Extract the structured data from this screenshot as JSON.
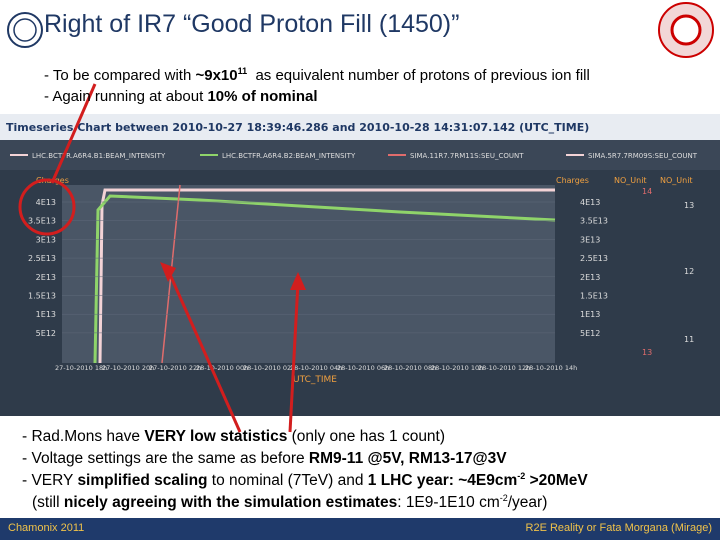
{
  "title": "Right of IR7 “Good Proton Fill (1450)”",
  "top_bullets": [
    [
      {
        "text": "- To be compared with "
      },
      {
        "text": "~9x10",
        "bold": true
      },
      {
        "text": "11",
        "bold": true,
        "sup": true
      },
      {
        "text": "  as equivalent number of protons of previous ion fill"
      }
    ],
    [
      {
        "text": "- Again running at about "
      },
      {
        "text": "10% of nominal",
        "bold": true
      }
    ]
  ],
  "chart": {
    "header": "Timeseries Chart between 2010-10-27 18:39:46.286 and 2010-10-28 14:31:07.142 (UTC_TIME)",
    "legend": [
      "LHC.BCTFR.A6R4.B1:BEAM_INTENSITY",
      "LHC.BCTFR.A6R4.B2:BEAM_INTENSITY",
      "SIMA.11R7.7RM11S:SEU_COUNT",
      "SIMA.5R7.7RM09S:SEU_COUNT"
    ],
    "left_unit": "Charges",
    "right_unit": "Charges",
    "right2_units": [
      "NO_Unit",
      "NO_Unit"
    ],
    "left_ticks": [
      "4E13",
      "3.5E13",
      "3E13",
      "2.5E13",
      "2E13",
      "1.5E13",
      "1E13",
      "5E12"
    ],
    "right_ticks": [
      "4E13",
      "3.5E13",
      "3E13",
      "2.5E13",
      "2E13",
      "1.5E13",
      "1E13",
      "5E12"
    ],
    "right2_ticks": [
      "14",
      "13",
      "12",
      "11",
      "13"
    ],
    "x_ticks": [
      "27-10-2010 18h",
      "27-10-2010 20h",
      "27-10-2010 22h",
      "28-10-2010 00h",
      "28-10-2010 02h",
      "28-10-2010 04h",
      "28-10-2010 06h",
      "28-10-2010 08h",
      "28-10-2010 10h",
      "28-10-2010 12h",
      "28-10-2010 14h"
    ],
    "x_label": "UTC_TIME"
  },
  "bottom_bullets": [
    [
      {
        "text": "- Rad.Mons have "
      },
      {
        "text": "VERY low statistics",
        "bold": true
      },
      {
        "text": " (only one has 1 count)"
      }
    ],
    [
      {
        "text": "- Voltage settings are the same as before "
      },
      {
        "text": "RM9-11 @5V, RM13-17@3V",
        "bold": true
      }
    ],
    [
      {
        "text": "- VERY "
      },
      {
        "text": "simplified scaling",
        "bold": true
      },
      {
        "text": " to nominal (7TeV) and "
      },
      {
        "text": "1 LHC year: ~4E9cm",
        "bold": true
      },
      {
        "text": "-2",
        "bold": true,
        "sup": true
      },
      {
        "text": " >20MeV",
        "bold": true
      }
    ],
    [
      {
        "text": "(still "
      },
      {
        "text": "nicely agreeing with the simulation estimates",
        "bold": true
      },
      {
        "text": ": 1E9-1E10 cm"
      },
      {
        "text": "-2",
        "sup": true
      },
      {
        "text": "/year)"
      }
    ]
  ],
  "footer": {
    "left": "Chamonix 2011",
    "right": "R2E Reality or Fata Morgana (Mirage)"
  }
}
